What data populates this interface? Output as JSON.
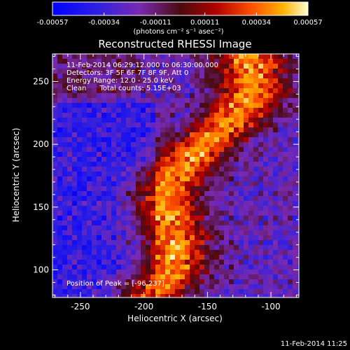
{
  "colorbar": {
    "tick_labels": [
      "-0.00057",
      "-0.00034",
      "-0.00011",
      "0.00011",
      "0.00034",
      "0.00057"
    ],
    "ticks": [
      -0.00057,
      -0.00034,
      -0.00011,
      0.00011,
      0.00034,
      0.00057
    ],
    "range": [
      -0.00057,
      0.00057
    ],
    "units_text": "(photons cm⁻² s⁻¹ asec⁻²)",
    "colors": [
      "#0000ff",
      "#4a2bd6",
      "#7a2ab0",
      "#6b1a1a",
      "#b00000",
      "#ff5a00",
      "#ffb000",
      "#ffff80"
    ]
  },
  "title": "Reconstructed RHESSI Image",
  "info_lines": [
    "11-Feb-2014 06:29:12.000 to 06:30:00.000",
    "Detectors: 3F 5F 6F 7F 8F 9F, Att 0",
    "Energy Range: 12.0 - 25.0 keV",
    "Clean      Total counts: 5.15E+03"
  ],
  "peak_text": "Position of Peak = [-96,237]",
  "xlabel": "Heliocentric X (arcsec)",
  "ylabel": "Heliocentric Y (arcsec)",
  "timestamp": "11-Feb-2014 11:25",
  "chart_data": {
    "type": "heatmap",
    "title": "Reconstructed RHESSI Image",
    "xlabel": "Heliocentric X (arcsec)",
    "ylabel": "Heliocentric Y (arcsec)",
    "xlim": [
      -272,
      -78
    ],
    "ylim": [
      78,
      272
    ],
    "x_ticks": [
      -250,
      -200,
      -150,
      -100
    ],
    "y_ticks": [
      100,
      150,
      200,
      250
    ],
    "value_range": [
      -0.00057,
      0.00057
    ],
    "peak_position": [
      -96,
      237
    ],
    "grid": false
  }
}
